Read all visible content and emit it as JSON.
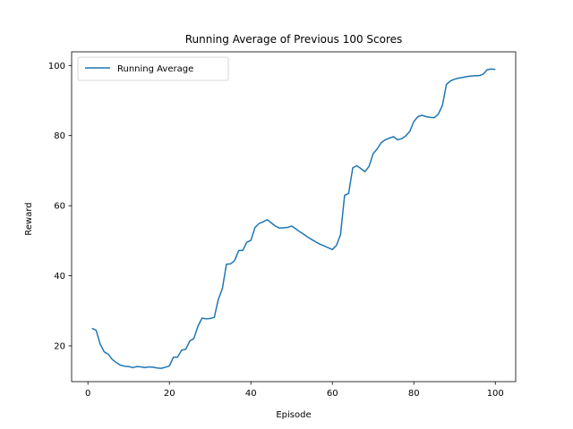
{
  "chart_data": {
    "type": "line",
    "title": "Running Average of Previous 100 Scores",
    "xlabel": "Episode",
    "ylabel": "Reward",
    "xlim": [
      -4.0,
      105.0
    ],
    "ylim": [
      9.8,
      103.9
    ],
    "xticks": [
      0,
      20,
      40,
      60,
      80,
      100
    ],
    "yticks": [
      20,
      40,
      60,
      80,
      100
    ],
    "grid": false,
    "legend_position": "upper left",
    "series": [
      {
        "name": "Running Average",
        "color": "#1f77b4",
        "x": [
          1,
          2,
          3,
          4,
          5,
          6,
          7,
          8,
          9,
          10,
          11,
          12,
          13,
          14,
          15,
          16,
          17,
          18,
          19,
          20,
          21,
          22,
          23,
          24,
          25,
          26,
          27,
          28,
          29,
          30,
          31,
          32,
          33,
          34,
          35,
          36,
          37,
          38,
          39,
          40,
          41,
          42,
          43,
          44,
          45,
          46,
          47,
          48,
          49,
          50,
          51,
          52,
          53,
          54,
          55,
          56,
          57,
          58,
          59,
          60,
          61,
          62,
          63,
          64,
          65,
          66,
          67,
          68,
          69,
          70,
          71,
          72,
          73,
          74,
          75,
          76,
          77,
          78,
          79,
          80,
          81,
          82,
          83,
          84,
          85,
          86,
          87,
          88,
          89,
          90,
          91,
          92,
          93,
          94,
          95,
          96,
          97,
          98,
          99,
          100
        ],
        "y": [
          25.0,
          24.5,
          20.5,
          18.3,
          17.6,
          16.1,
          15.2,
          14.5,
          14.2,
          14.1,
          13.8,
          14.1,
          14.0,
          13.8,
          14.0,
          13.9,
          13.7,
          13.6,
          13.9,
          14.3,
          16.8,
          16.8,
          18.8,
          19.0,
          21.4,
          22.1,
          25.6,
          27.9,
          27.7,
          27.8,
          28.1,
          33.2,
          36.4,
          43.3,
          43.4,
          44.3,
          47.2,
          47.2,
          49.6,
          50.1,
          53.8,
          54.9,
          55.4,
          56.0,
          55.1,
          54.2,
          53.6,
          53.7,
          53.8,
          54.2,
          53.4,
          52.6,
          51.8,
          51.0,
          50.3,
          49.6,
          49.0,
          48.5,
          48.0,
          47.5,
          48.7,
          51.7,
          63.0,
          63.5,
          70.8,
          71.4,
          70.6,
          69.7,
          71.2,
          74.8,
          76.2,
          78.0,
          78.8,
          79.3,
          79.7,
          78.8,
          79.1,
          79.9,
          81.2,
          84.0,
          85.4,
          85.8,
          85.4,
          85.2,
          85.1,
          86.1,
          88.6,
          94.6,
          95.6,
          96.1,
          96.4,
          96.6,
          96.8,
          97.0,
          97.1,
          97.1,
          97.5,
          98.8,
          99.0,
          98.9
        ]
      }
    ]
  }
}
